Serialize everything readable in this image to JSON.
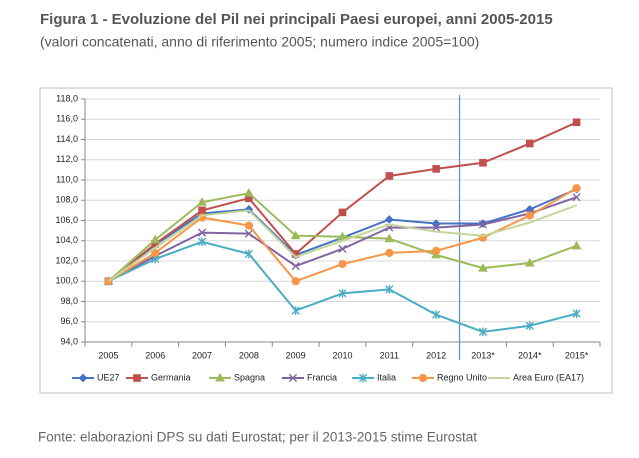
{
  "chart_data": {
    "type": "line",
    "title": "Figura 1 - Evoluzione del Pil nei principali Paesi europei, anni 2005-2015",
    "subtitle": "(valori concatenati, anno di riferimento 2005; numero indice 2005=100)",
    "source": "Fonte: elaborazioni DPS su dati Eurostat; per il 2013-2015 stime Eurostat",
    "categories": [
      "2005",
      "2006",
      "2007",
      "2008",
      "2009",
      "2010",
      "2011",
      "2012",
      "2013*",
      "2014*",
      "2015*"
    ],
    "ylim": [
      94,
      118
    ],
    "yticks": [
      {
        "value": 94,
        "label": "94,0"
      },
      {
        "value": 96,
        "label": "96,0"
      },
      {
        "value": 98,
        "label": "98,0"
      },
      {
        "value": 100,
        "label": "100,0"
      },
      {
        "value": 102,
        "label": "102,0"
      },
      {
        "value": 104,
        "label": "104,0"
      },
      {
        "value": 106,
        "label": "106,0"
      },
      {
        "value": 108,
        "label": "108,0"
      },
      {
        "value": 110,
        "label": "110,0"
      },
      {
        "value": 112,
        "label": "112,0"
      },
      {
        "value": 114,
        "label": "114,0"
      },
      {
        "value": 116,
        "label": "116,0"
      },
      {
        "value": 118,
        "label": "118,0"
      }
    ],
    "grid": true,
    "legend": "bottom",
    "series": [
      {
        "name": "UE27",
        "color": "#4472c4",
        "marker": "diamond",
        "values": [
          100,
          103.6,
          106.7,
          107.1,
          102.6,
          104.3,
          106.1,
          105.7,
          105.7,
          107.1,
          109.1
        ]
      },
      {
        "name": "Germania",
        "color": "#c0504d",
        "marker": "square",
        "values": [
          100,
          103.7,
          107.0,
          108.2,
          102.7,
          106.8,
          110.4,
          111.1,
          111.7,
          113.6,
          115.7
        ]
      },
      {
        "name": "Spagna",
        "color": "#9bbb59",
        "marker": "triangle",
        "values": [
          100,
          104.1,
          107.8,
          108.7,
          104.5,
          104.4,
          104.2,
          102.6,
          101.3,
          101.8,
          103.5
        ]
      },
      {
        "name": "Francia",
        "color": "#8064a2",
        "marker": "x",
        "values": [
          100,
          102.5,
          104.8,
          104.7,
          101.5,
          103.2,
          105.3,
          105.3,
          105.6,
          106.7,
          108.3
        ]
      },
      {
        "name": "Italia",
        "color": "#4bacc6",
        "marker": "star",
        "values": [
          100,
          102.2,
          103.9,
          102.7,
          97.1,
          98.8,
          99.2,
          96.7,
          95.0,
          95.6,
          96.8
        ]
      },
      {
        "name": "Regno Unito",
        "color": "#f79646",
        "marker": "circle",
        "values": [
          100,
          102.8,
          106.3,
          105.5,
          100.0,
          101.7,
          102.8,
          103.0,
          104.3,
          106.5,
          109.2
        ]
      },
      {
        "name": "Area Euro (EA17)",
        "color": "#c3d69b",
        "marker": "none",
        "values": [
          100,
          103.3,
          106.5,
          107.0,
          102.4,
          104.0,
          105.6,
          104.9,
          104.5,
          105.8,
          107.5
        ]
      }
    ]
  }
}
